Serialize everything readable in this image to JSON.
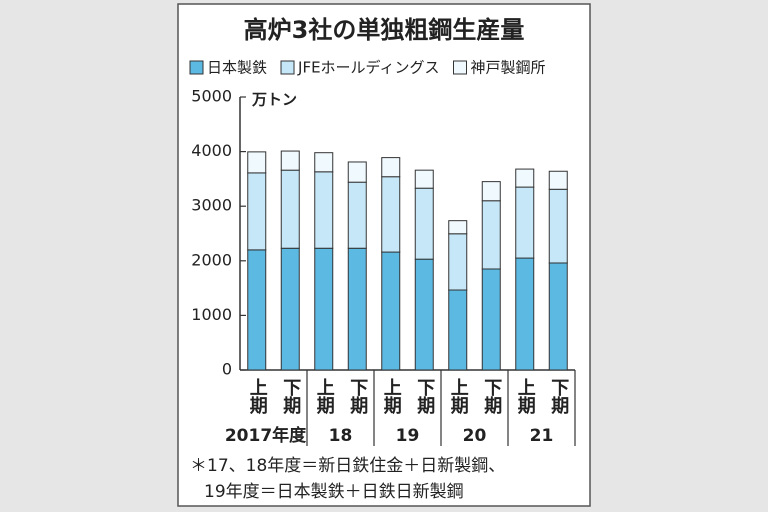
{
  "chart_data": {
    "type": "stacked-bar",
    "title": "高炉3社の単独粗鋼生産量",
    "unit": "万トン",
    "categories": [
      "上期",
      "下期",
      "上期",
      "下期",
      "上期",
      "下期",
      "上期",
      "下期",
      "上期",
      "下期"
    ],
    "groups": [
      "2017年度",
      "18",
      "19",
      "20",
      "21"
    ],
    "series": [
      {
        "name": "日本製鉄",
        "color": "#5cb9e2",
        "values": [
          2200,
          2230,
          2230,
          2230,
          2160,
          2030,
          1465,
          1850,
          2050,
          1960
        ]
      },
      {
        "name": "JFEホールディングス",
        "color": "#c6e7f8",
        "values": [
          1410,
          1430,
          1400,
          1210,
          1380,
          1300,
          1030,
          1250,
          1300,
          1350
        ]
      },
      {
        "name": "神戸製鋼所",
        "color": "#f0f9fe",
        "values": [
          385,
          350,
          350,
          370,
          350,
          330,
          240,
          350,
          330,
          330
        ]
      }
    ],
    "ylim": [
      0,
      5000
    ],
    "yticks": [
      0,
      1000,
      2000,
      3000,
      4000,
      5000
    ],
    "notes": [
      "＊17、18年度＝新日鉄住金＋日新製鋼、",
      "19年度＝日本製鉄＋日鉄日新製鋼"
    ]
  }
}
